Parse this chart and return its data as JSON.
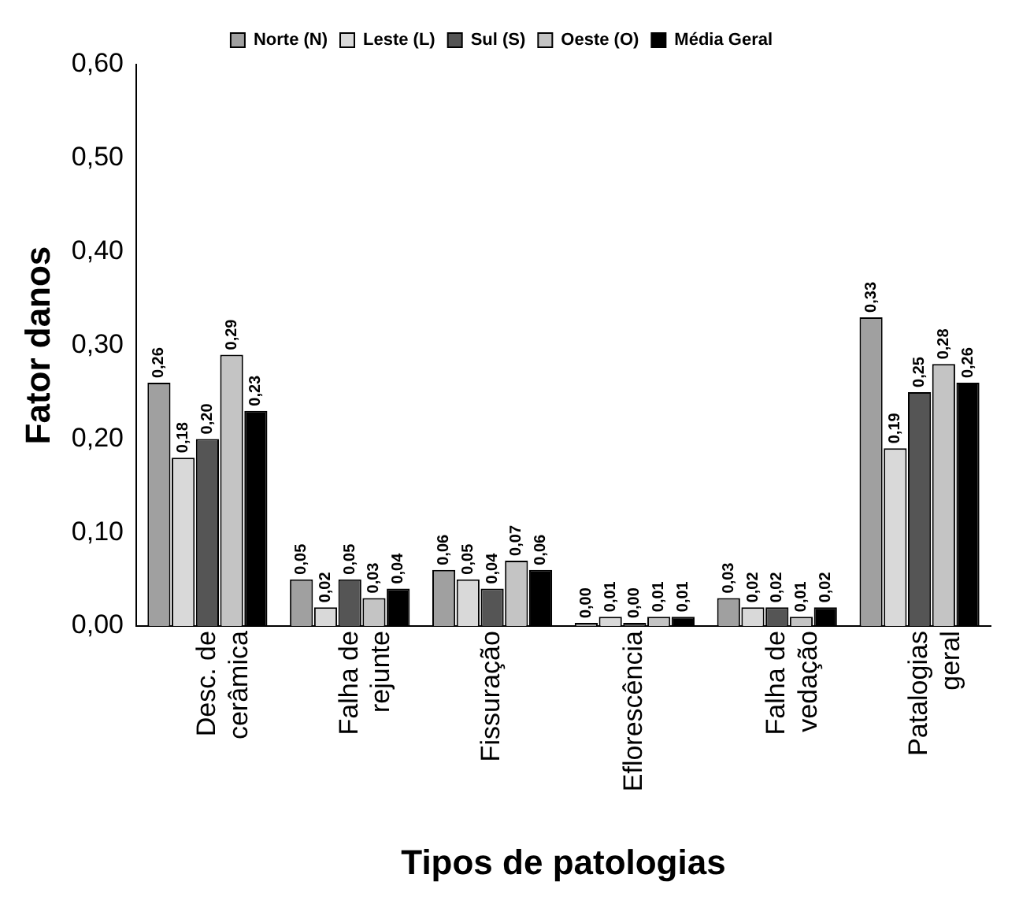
{
  "chart_data": {
    "type": "bar",
    "xlabel": "Tipos de patologias",
    "ylabel": "Fator danos",
    "categories": [
      "Desc. de cerâmica",
      "Falha de rejunte",
      "Fissuração",
      "Eflorescência",
      "Falha de vedação",
      "Patalogias geral"
    ],
    "series": [
      {
        "name": "Norte (N)",
        "color": "#a0a0a0",
        "values": [
          0.26,
          0.05,
          0.06,
          0.0,
          0.03,
          0.33
        ],
        "value_labels": [
          "0,26",
          "0,05",
          "0,06",
          "0,00",
          "0,03",
          "0,33"
        ]
      },
      {
        "name": "Leste (L)",
        "color": "#d9d9d9",
        "values": [
          0.18,
          0.02,
          0.05,
          0.01,
          0.02,
          0.19
        ],
        "value_labels": [
          "0,18",
          "0,02",
          "0,05",
          "0,01",
          "0,02",
          "0,19"
        ]
      },
      {
        "name": "Sul (S)",
        "color": "#555555",
        "values": [
          0.2,
          0.05,
          0.04,
          0.0,
          0.02,
          0.25
        ],
        "value_labels": [
          "0,20",
          "0,05",
          "0,04",
          "0,00",
          "0,02",
          "0,25"
        ]
      },
      {
        "name": "Oeste (O)",
        "color": "#c4c4c4",
        "values": [
          0.29,
          0.03,
          0.07,
          0.01,
          0.01,
          0.28
        ],
        "value_labels": [
          "0,29",
          "0,03",
          "0,07",
          "0,01",
          "0,01",
          "0,28"
        ]
      },
      {
        "name": "Média Geral",
        "color": "#000000",
        "values": [
          0.23,
          0.04,
          0.06,
          0.01,
          0.02,
          0.26
        ],
        "value_labels": [
          "0,23",
          "0,04",
          "0,06",
          "0,01",
          "0,02",
          "0,26"
        ]
      }
    ],
    "ylim": [
      0,
      0.6
    ],
    "yticks": [
      {
        "value": 0,
        "label": "0,00"
      },
      {
        "value": 0.1,
        "label": "0,10"
      },
      {
        "value": 0.2,
        "label": "0,20"
      },
      {
        "value": 0.3,
        "label": "0,30"
      },
      {
        "value": 0.4,
        "label": "0,40"
      },
      {
        "value": 0.5,
        "label": "0,50"
      },
      {
        "value": 0.6,
        "label": "0,60"
      }
    ],
    "grid": false,
    "legend": "top"
  }
}
